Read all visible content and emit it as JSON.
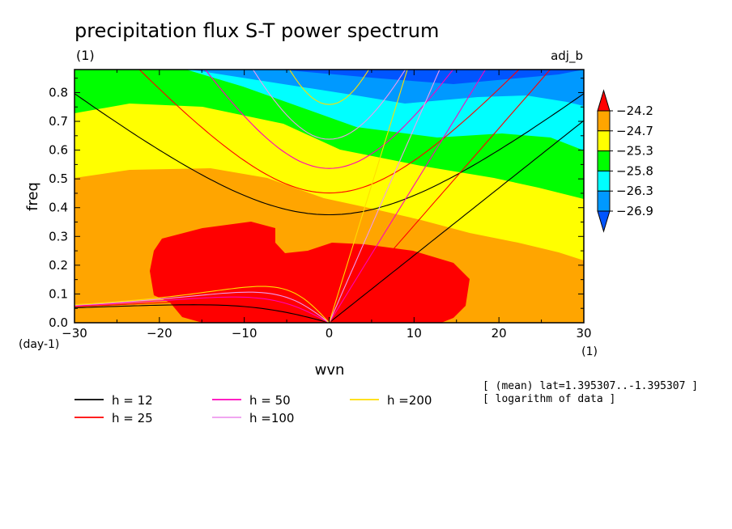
{
  "chart_data": {
    "type": "heatmap",
    "title": "precipitation flux S-T power spectrum",
    "subtitle_left": "(1)",
    "subtitle_right": "adj_b",
    "xlabel": "wvn",
    "ylabel": "freq",
    "x_unit": "(1)",
    "y_unit": "(day-1)",
    "xlim": [
      -30,
      30
    ],
    "ylim": [
      0,
      0.88
    ],
    "x_ticks": [
      -30,
      -20,
      -10,
      0,
      10,
      20,
      30
    ],
    "x_tick_labels": [
      "−30",
      "−20",
      "−10",
      "0",
      "10",
      "20",
      "30"
    ],
    "y_ticks": [
      0,
      0.1,
      0.2,
      0.3,
      0.4,
      0.5,
      0.6,
      0.7,
      0.8
    ],
    "y_tick_labels": [
      "0.0",
      "0.1",
      "0.2",
      "0.3",
      "0.4",
      "0.5",
      "0.6",
      "0.7",
      "0.8"
    ],
    "colorbar": {
      "levels": [
        "−24.2",
        "−24.7",
        "−25.3",
        "−25.8",
        "−26.3",
        "−26.9"
      ],
      "colors": [
        "#ff0000",
        "#ffa500",
        "#ffff00",
        "#00ff00",
        "#00ffff",
        "#0099ff",
        "#0055ff"
      ]
    },
    "contour_fill_order": [
      "#0055ff",
      "#0099ff",
      "#00ffff",
      "#00ff00",
      "#ffff00",
      "#ffa500",
      "#ff0000"
    ],
    "dispersion_curves": [
      {
        "h": 12,
        "label": "h = 12",
        "color": "#000000"
      },
      {
        "h": 25,
        "label": "h = 25",
        "color": "#ff0000"
      },
      {
        "h": 50,
        "label": "h = 50",
        "color": "#ff00bb"
      },
      {
        "h": 100,
        "label": "h =100",
        "color": "#ee99ee"
      },
      {
        "h": 200,
        "label": "h =200",
        "color": "#ffdd00"
      }
    ],
    "notes": [
      "[ (mean) lat=1.395307..-1.395307 ]",
      "[ logarithm of data ]"
    ]
  }
}
